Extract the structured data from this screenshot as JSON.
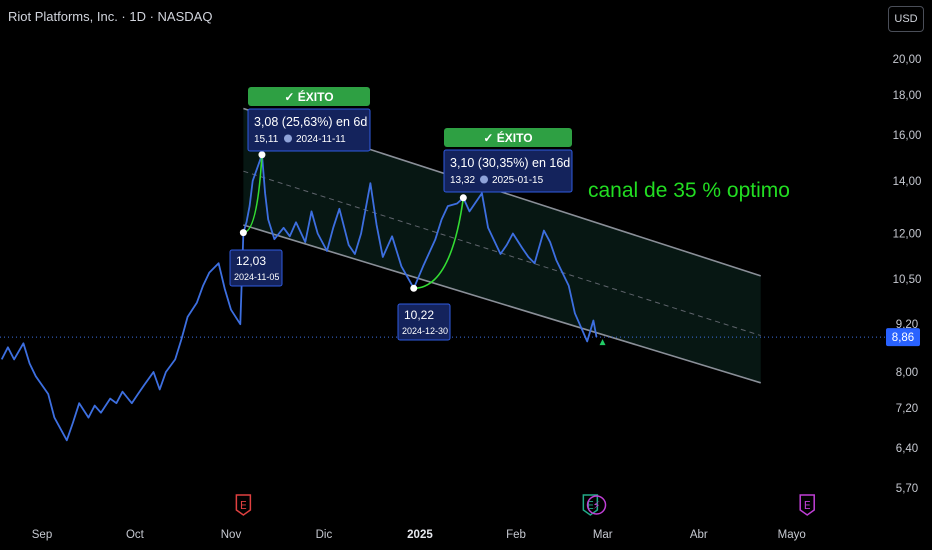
{
  "header": {
    "title": "Riot Platforms, Inc. · 1D · NASDAQ",
    "currency_button": "USD"
  },
  "chart_data": {
    "type": "line",
    "y_scale": "log",
    "ylim": [
      5.5,
      22
    ],
    "y_ticks": [
      "20,00",
      "18,00",
      "16,00",
      "14,00",
      "12,00",
      "10,50",
      "9,20",
      "8,00",
      "7,20",
      "6,40",
      "5,70"
    ],
    "y_tick_values": [
      20.0,
      18.0,
      16.0,
      14.0,
      12.0,
      10.5,
      9.2,
      8.0,
      7.2,
      6.4,
      5.7
    ],
    "x_ticks": [
      "Sep",
      "Oct",
      "Nov",
      "Dic",
      "2025",
      "Feb",
      "Mar",
      "Abr",
      "Mayo"
    ],
    "x_tick_dates": [
      "2024-09-01",
      "2024-10-01",
      "2024-11-01",
      "2024-12-01",
      "2025-01-01",
      "2025-02-01",
      "2025-03-01",
      "2025-04-01",
      "2025-05-01"
    ],
    "series": [
      {
        "color": "#3d6fe0",
        "points": [
          [
            "2024-08-19",
            8.3
          ],
          [
            "2024-08-21",
            8.6
          ],
          [
            "2024-08-23",
            8.3
          ],
          [
            "2024-08-26",
            8.7
          ],
          [
            "2024-08-28",
            8.2
          ],
          [
            "2024-08-30",
            7.9
          ],
          [
            "2024-09-03",
            7.5
          ],
          [
            "2024-09-05",
            7.0
          ],
          [
            "2024-09-09",
            6.55
          ],
          [
            "2024-09-11",
            6.9
          ],
          [
            "2024-09-13",
            7.3
          ],
          [
            "2024-09-16",
            7.0
          ],
          [
            "2024-09-18",
            7.25
          ],
          [
            "2024-09-20",
            7.1
          ],
          [
            "2024-09-23",
            7.4
          ],
          [
            "2024-09-25",
            7.3
          ],
          [
            "2024-09-27",
            7.55
          ],
          [
            "2024-09-30",
            7.3
          ],
          [
            "2024-10-02",
            7.5
          ],
          [
            "2024-10-04",
            7.7
          ],
          [
            "2024-10-07",
            8.0
          ],
          [
            "2024-10-09",
            7.6
          ],
          [
            "2024-10-11",
            8.0
          ],
          [
            "2024-10-14",
            8.3
          ],
          [
            "2024-10-16",
            8.8
          ],
          [
            "2024-10-18",
            9.4
          ],
          [
            "2024-10-21",
            9.8
          ],
          [
            "2024-10-23",
            10.3
          ],
          [
            "2024-10-25",
            10.7
          ],
          [
            "2024-10-28",
            11.0
          ],
          [
            "2024-10-30",
            10.2
          ],
          [
            "2024-11-01",
            9.6
          ],
          [
            "2024-11-04",
            9.2
          ],
          [
            "2024-11-05",
            12.03
          ],
          [
            "2024-11-06",
            12.4
          ],
          [
            "2024-11-07",
            13.0
          ],
          [
            "2024-11-08",
            14.0
          ],
          [
            "2024-11-11",
            15.11
          ],
          [
            "2024-11-12",
            13.5
          ],
          [
            "2024-11-13",
            12.5
          ],
          [
            "2024-11-15",
            11.8
          ],
          [
            "2024-11-18",
            12.2
          ],
          [
            "2024-11-20",
            11.9
          ],
          [
            "2024-11-22",
            12.4
          ],
          [
            "2024-11-25",
            11.7
          ],
          [
            "2024-11-27",
            12.8
          ],
          [
            "2024-11-29",
            12.0
          ],
          [
            "2024-12-02",
            11.4
          ],
          [
            "2024-12-04",
            12.2
          ],
          [
            "2024-12-06",
            12.9
          ],
          [
            "2024-12-09",
            11.6
          ],
          [
            "2024-12-11",
            11.3
          ],
          [
            "2024-12-13",
            12.0
          ],
          [
            "2024-12-16",
            13.9
          ],
          [
            "2024-12-18",
            12.3
          ],
          [
            "2024-12-20",
            11.2
          ],
          [
            "2024-12-23",
            11.9
          ],
          [
            "2024-12-26",
            10.9
          ],
          [
            "2024-12-30",
            10.22
          ],
          [
            "2025-01-02",
            10.9
          ],
          [
            "2025-01-06",
            11.8
          ],
          [
            "2025-01-08",
            12.5
          ],
          [
            "2025-01-10",
            13.0
          ],
          [
            "2025-01-13",
            13.1
          ],
          [
            "2025-01-15",
            13.32
          ],
          [
            "2025-01-17",
            12.8
          ],
          [
            "2025-01-21",
            13.5
          ],
          [
            "2025-01-23",
            12.2
          ],
          [
            "2025-01-27",
            11.3
          ],
          [
            "2025-01-29",
            11.6
          ],
          [
            "2025-01-31",
            12.0
          ],
          [
            "2025-02-03",
            11.5
          ],
          [
            "2025-02-05",
            11.2
          ],
          [
            "2025-02-07",
            11.0
          ],
          [
            "2025-02-10",
            12.1
          ],
          [
            "2025-02-12",
            11.7
          ],
          [
            "2025-02-14",
            11.1
          ],
          [
            "2025-02-18",
            10.3
          ],
          [
            "2025-02-20",
            9.5
          ],
          [
            "2025-02-24",
            8.75
          ],
          [
            "2025-02-26",
            9.3
          ],
          [
            "2025-02-27",
            8.86
          ]
        ]
      }
    ],
    "last_price": {
      "value": 8.86,
      "label": "8,86"
    },
    "channel": {
      "upper": [
        [
          "2024-11-05",
          17.3
        ],
        [
          "2025-04-21",
          10.6
        ]
      ],
      "mid": [
        [
          "2024-11-05",
          14.4
        ],
        [
          "2025-04-21",
          8.9
        ]
      ],
      "lower": [
        [
          "2024-11-05",
          12.3
        ],
        [
          "2025-04-21",
          7.75
        ]
      ]
    },
    "annotations": [
      {
        "badge": "✓ ÉXITO",
        "gain": "3,08 (25,63%) en 6d",
        "target_price": "15,11",
        "target_date": "2024-11-11",
        "start_price": "12,03",
        "start_date": "2024-11-05",
        "start": [
          "2024-11-05",
          12.03
        ],
        "end": [
          "2024-11-11",
          15.11
        ]
      },
      {
        "badge": "✓ ÉXITO",
        "gain": "3,10 (30,35%) en 16d",
        "target_price": "13,32",
        "target_date": "2025-01-15",
        "start_price": "10,22",
        "start_date": "2024-12-30",
        "start": [
          "2024-12-30",
          10.22
        ],
        "end": [
          "2025-01-15",
          13.32
        ]
      }
    ],
    "note": "canal de 35 % optimo",
    "events": [
      {
        "date": "2024-11-05",
        "letter": "E",
        "color": "#e04040"
      },
      {
        "date": "2025-02-25",
        "letter": "E",
        "color": "#22aa88"
      },
      {
        "date": "2025-02-27",
        "letter": "⚡",
        "color": "#c03fd6"
      },
      {
        "date": "2025-05-06",
        "letter": "E",
        "color": "#c03fd6"
      }
    ]
  }
}
